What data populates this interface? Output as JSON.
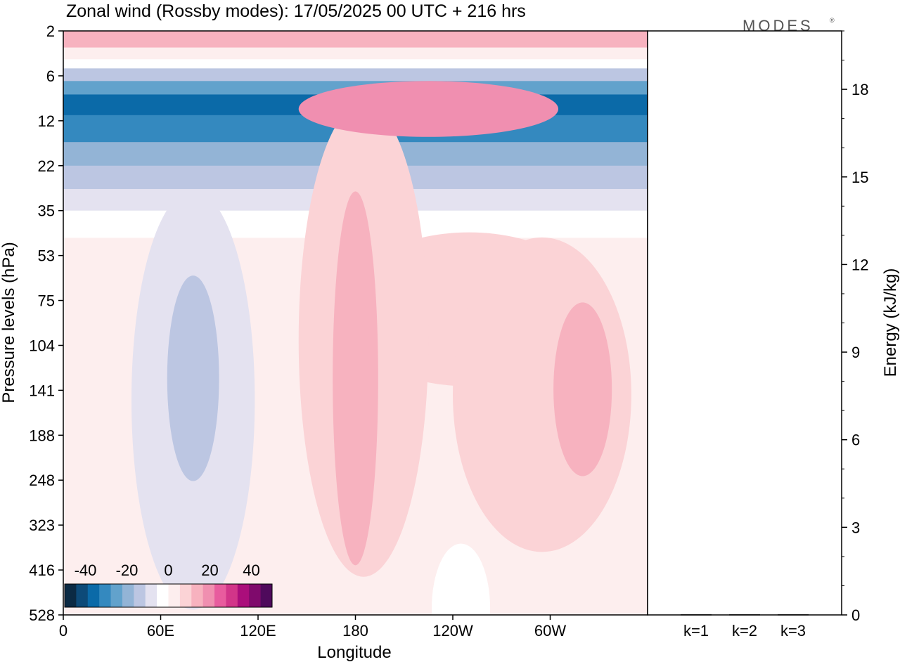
{
  "chart_data": [
    {
      "type": "heatmap",
      "title": "Zonal wind (Rossby modes):  17/05/2025  00 UTC  + 216 hrs",
      "logo": "MODES",
      "xlabel": "Longitude",
      "ylabel": "Pressure levels (hPa)",
      "x_ticks": [
        "0",
        "60E",
        "120E",
        "180",
        "120W",
        "60W"
      ],
      "x_tick_degrees": [
        0,
        60,
        120,
        180,
        240,
        300
      ],
      "xlim": [
        0,
        360
      ],
      "y_ticks": [
        "2",
        "6",
        "12",
        "22",
        "35",
        "53",
        "75",
        "104",
        "141",
        "188",
        "248",
        "323",
        "416",
        "528"
      ],
      "y_tick_hpa": [
        2,
        6,
        12,
        22,
        35,
        53,
        75,
        104,
        141,
        188,
        248,
        323,
        416,
        528
      ],
      "colorbar": {
        "tick_labels": [
          "-40",
          "-20",
          "0",
          "20",
          "40"
        ],
        "tick_values": [
          -40,
          -20,
          0,
          20,
          40
        ],
        "range": [
          -50,
          50
        ],
        "colors": [
          "#0b2a44",
          "#0d4a78",
          "#0b6aa8",
          "#3489bf",
          "#62a2cc",
          "#93b4d6",
          "#bcc6e2",
          "#e4e2f0",
          "#ffffff",
          "#fdeeee",
          "#fbd3d6",
          "#f7b2bf",
          "#f08fb0",
          "#e85c9e",
          "#d23589",
          "#ab0e7b",
          "#7f0a6c",
          "#4f0a5c"
        ]
      },
      "bands": [
        {
          "p": [
            2,
            3
          ],
          "value": 12
        },
        {
          "p": [
            3,
            4
          ],
          "value": 3
        },
        {
          "p": [
            4,
            5
          ],
          "value": -5
        },
        {
          "p": [
            5,
            6.5
          ],
          "value": -15
        },
        {
          "p": [
            6.5,
            8
          ],
          "value": -25
        },
        {
          "p": [
            8,
            11
          ],
          "value": -38
        },
        {
          "p": [
            11,
            16
          ],
          "value": -30
        },
        {
          "p": [
            16,
            22
          ],
          "value": -22
        },
        {
          "p": [
            22,
            28
          ],
          "value": -15
        },
        {
          "p": [
            28,
            35
          ],
          "value": -9
        },
        {
          "p": [
            35,
            45
          ],
          "value": -3
        },
        {
          "p": [
            45,
            528
          ],
          "value": 2
        }
      ],
      "features": [
        {
          "lon": 180,
          "p": 130,
          "dlon": 14,
          "dlogp": 0.55,
          "value": 14
        },
        {
          "lon": 185,
          "p": 100,
          "dlon": 40,
          "dlogp": 0.8,
          "value": 7
        },
        {
          "lon": 320,
          "p": 140,
          "dlon": 18,
          "dlogp": 0.25,
          "value": 13
        },
        {
          "lon": 295,
          "p": 145,
          "dlon": 55,
          "dlogp": 0.45,
          "value": 7
        },
        {
          "lon": 250,
          "p": 80,
          "dlon": 80,
          "dlogp": 0.25,
          "value": 6
        },
        {
          "lon": 225,
          "p": 10,
          "dlon": 80,
          "dlogp": 0.18,
          "value": 20
        },
        {
          "lon": 80,
          "p": 130,
          "dlon": 16,
          "dlogp": 0.3,
          "value": -12
        },
        {
          "lon": 80,
          "p": 150,
          "dlon": 38,
          "dlogp": 0.7,
          "value": -7
        },
        {
          "lon": 245,
          "p": 510,
          "dlon": 18,
          "dlogp": 0.3,
          "value": -5
        },
        {
          "lon": 40,
          "p": 240,
          "dlon": 22,
          "dlogp": 0.9,
          "value": 4
        }
      ]
    },
    {
      "type": "bar",
      "ylabel": "Energy (kJ/kg)",
      "categories": [
        "k=1",
        "k=2",
        "k=3"
      ],
      "values": [
        0.02,
        0.02,
        0.02
      ],
      "ylim": [
        0,
        20
      ],
      "y_ticks": [
        0,
        3,
        6,
        9,
        12,
        15,
        18
      ]
    }
  ]
}
